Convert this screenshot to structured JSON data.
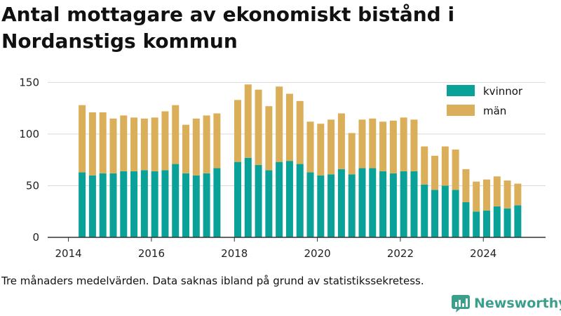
{
  "title": "Antal mottagare av ekonomiskt bistånd i Nordanstigs kommun",
  "footnote": "Tre månaders medelvärden. Data saknas ibland på grund av statistikssekretess.",
  "brand": {
    "name": "Newsworthy",
    "icon": "newsworthy-logo-icon",
    "color": "#3c9f8b"
  },
  "colors": {
    "kvinnor": "#0aa198",
    "man": "#dbaf5a",
    "grid": "#d9d9d9",
    "axis": "#333333"
  },
  "chart_data": {
    "type": "bar",
    "stacked": true,
    "title": "Antal mottagare av ekonomiskt bistånd i Nordanstigs kommun",
    "xlabel": "",
    "ylabel": "",
    "ylim": [
      0,
      155
    ],
    "xlim": [
      2013.5,
      2025.5
    ],
    "yticks": [
      0,
      50,
      100,
      150
    ],
    "xticks": [
      2014,
      2016,
      2018,
      2020,
      2022,
      2024
    ],
    "grid": true,
    "legend_position": "top-right",
    "x": [
      2014.33,
      2014.58,
      2014.83,
      2015.08,
      2015.33,
      2015.58,
      2015.83,
      2016.08,
      2016.33,
      2016.58,
      2016.83,
      2017.08,
      2017.33,
      2017.58,
      2018.08,
      2018.33,
      2018.58,
      2018.83,
      2019.08,
      2019.33,
      2019.58,
      2019.83,
      2020.08,
      2020.33,
      2020.58,
      2020.83,
      2021.08,
      2021.33,
      2021.58,
      2021.83,
      2022.08,
      2022.33,
      2022.58,
      2022.83,
      2023.08,
      2023.33,
      2023.58,
      2023.83,
      2024.08,
      2024.33,
      2024.58,
      2024.83
    ],
    "series": [
      {
        "name": "kvinnor",
        "color": "#0aa198",
        "values": [
          63,
          60,
          62,
          62,
          64,
          64,
          65,
          64,
          65,
          71,
          62,
          60,
          62,
          67,
          73,
          77,
          70,
          65,
          73,
          74,
          71,
          63,
          60,
          61,
          66,
          61,
          67,
          67,
          64,
          62,
          64,
          64,
          51,
          46,
          50,
          46,
          34,
          25,
          26,
          30,
          28,
          31
        ]
      },
      {
        "name": "män",
        "color": "#dbaf5a",
        "values": [
          65,
          61,
          59,
          53,
          54,
          52,
          50,
          52,
          57,
          57,
          47,
          55,
          56,
          53,
          60,
          71,
          73,
          62,
          73,
          65,
          61,
          49,
          50,
          53,
          54,
          40,
          47,
          48,
          48,
          51,
          52,
          50,
          37,
          33,
          38,
          39,
          32,
          29,
          30,
          29,
          27,
          21
        ]
      }
    ]
  }
}
